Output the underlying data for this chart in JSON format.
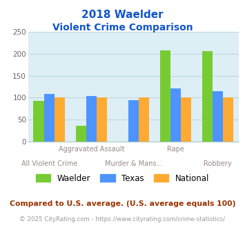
{
  "title_line1": "2018 Waelder",
  "title_line2": "Violent Crime Comparison",
  "waelder": [
    93,
    35,
    0,
    208,
    206
  ],
  "texas": [
    109,
    104,
    94,
    121,
    115
  ],
  "national": [
    100,
    100,
    100,
    100,
    100
  ],
  "waelder_color": "#77cc33",
  "texas_color": "#4d94ff",
  "national_color": "#ffaa33",
  "ylim": [
    0,
    250
  ],
  "yticks": [
    0,
    50,
    100,
    150,
    200,
    250
  ],
  "plot_bg": "#ddeef5",
  "title_color": "#1155cc",
  "top_labels": {
    "1": "Aggravated Assault",
    "3": "Rape"
  },
  "bot_labels": {
    "0": "All Violent Crime",
    "2": "Murder & Mans...",
    "4": "Robbery"
  },
  "label_color": "#998888",
  "footnote1": "Compared to U.S. average. (U.S. average equals 100)",
  "footnote2": "© 2025 CityRating.com - https://www.cityrating.com/crime-statistics/",
  "footnote1_color": "#993300",
  "footnote2_color": "#999999",
  "footnote2_url_color": "#4499ff",
  "legend_labels": [
    "Waelder",
    "Texas",
    "National"
  ],
  "bar_width": 0.25,
  "grid_color": "#c0d8e0",
  "spine_color": "#aacccc"
}
